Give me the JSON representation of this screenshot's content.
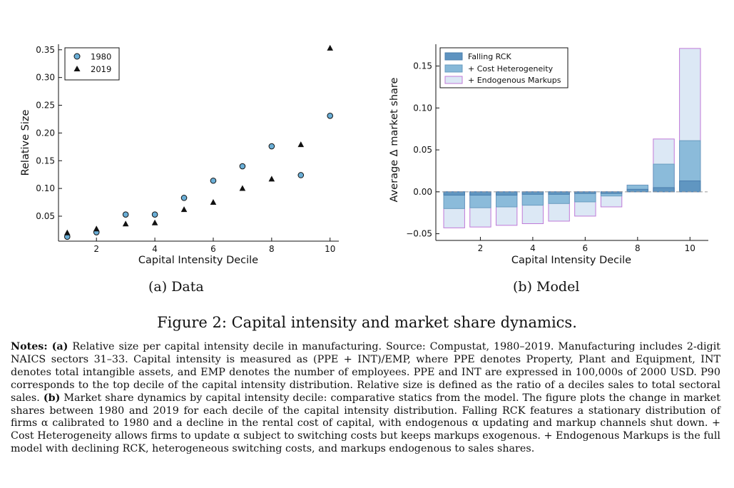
{
  "chart_data": [
    {
      "type": "scatter",
      "subcaption": "(a) Data",
      "xlabel": "Capital Intensity Decile",
      "ylabel": "Relative Size",
      "xlim": [
        0.7,
        10.3
      ],
      "ylim": [
        0.005,
        0.36
      ],
      "x_ticks": [
        2,
        4,
        6,
        8,
        10
      ],
      "y_ticks": [
        0.05,
        0.1,
        0.15,
        0.2,
        0.25,
        0.3,
        0.35
      ],
      "x_tick_labels": [
        "2",
        "4",
        "6",
        "8",
        "10"
      ],
      "y_tick_labels": [
        "0.05",
        "0.10",
        "0.15",
        "0.20",
        "0.25",
        "0.30",
        "0.35"
      ],
      "legend_position": "top-left",
      "series": [
        {
          "name": "1980",
          "marker": "circle",
          "color": "#6aaed6",
          "x": [
            1,
            2,
            3,
            4,
            5,
            6,
            7,
            8,
            9,
            10
          ],
          "values": [
            0.013,
            0.021,
            0.053,
            0.053,
            0.083,
            0.114,
            0.14,
            0.176,
            0.124,
            0.231
          ]
        },
        {
          "name": "2019",
          "marker": "triangle",
          "color": "#111111",
          "x": [
            1,
            2,
            3,
            4,
            5,
            6,
            7,
            8,
            9,
            10
          ],
          "values": [
            0.02,
            0.027,
            0.036,
            0.038,
            0.062,
            0.075,
            0.1,
            0.117,
            0.179,
            0.353
          ]
        }
      ]
    },
    {
      "type": "bar",
      "subcaption": "(b) Model",
      "xlabel": "Capital Intensity Decile",
      "ylabel": "Average Δ market share",
      "xlim": [
        0.3,
        10.7
      ],
      "ylim": [
        -0.058,
        0.176
      ],
      "x_ticks": [
        2,
        4,
        6,
        8,
        10
      ],
      "y_ticks": [
        -0.05,
        0.0,
        0.05,
        0.1,
        0.15
      ],
      "x_tick_labels": [
        "2",
        "4",
        "6",
        "8",
        "10"
      ],
      "y_tick_labels": [
        "−0.05",
        "0.00",
        "0.05",
        "0.10",
        "0.15"
      ],
      "legend_position": "top-left",
      "categories": [
        1,
        2,
        3,
        4,
        5,
        6,
        7,
        8,
        9,
        10
      ],
      "series": [
        {
          "name": "Falling RCK",
          "fill": "#5e93c0",
          "stroke": "#4a7fae",
          "values": [
            -0.004,
            -0.004,
            -0.004,
            -0.003,
            -0.003,
            -0.002,
            -0.002,
            0.003,
            0.005,
            0.013
          ]
        },
        {
          "name": "+ Cost Heterogeneity",
          "fill": "#86b8d8",
          "stroke": "#6a9cc0",
          "values": [
            -0.02,
            -0.019,
            -0.018,
            -0.016,
            -0.014,
            -0.012,
            -0.005,
            0.008,
            0.033,
            0.061
          ]
        },
        {
          "name": "+ Endogenous Markups",
          "fill": "#dce8f5",
          "stroke": "#c07ad8",
          "values": [
            -0.043,
            -0.042,
            -0.04,
            -0.038,
            -0.035,
            -0.029,
            -0.018,
            0.008,
            0.063,
            0.171
          ]
        }
      ]
    }
  ],
  "figure_caption": "Figure 2: Capital intensity and market share dynamics.",
  "notes": {
    "label": "Notes:",
    "a_label": "(a)",
    "a_text": "Relative size per capital intensity decile in manufacturing. Source: Compustat, 1980–2019. Manufacturing includes 2-digit NAICS sectors 31–33. Capital intensity is measured as (PPE + INT)/EMP, where PPE denotes Property, Plant and Equipment, INT denotes total intangible assets, and EMP denotes the number of employees. PPE and INT are expressed in 100,000s of 2000 USD. P90 corresponds to the top decile of the capital intensity distribution. Relative size is defined as the ratio of a deciles sales to total sectoral sales.",
    "b_label": "(b)",
    "b_text": "Market share dynamics by capital intensity decile: comparative statics from the model. The figure plots the change in market shares between 1980 and 2019 for each decile of the capital intensity distribution. Falling RCK features a stationary distribution of firms α calibrated to 1980 and a decline in the rental cost of capital, with endogenous α updating and markup channels shut down. + Cost Heterogeneity allows firms to update α subject to switching costs but keeps markups exogenous. + Endogenous Markups is the full model with declining RCK, heterogeneous switching costs, and markups endogenous to sales shares."
  }
}
